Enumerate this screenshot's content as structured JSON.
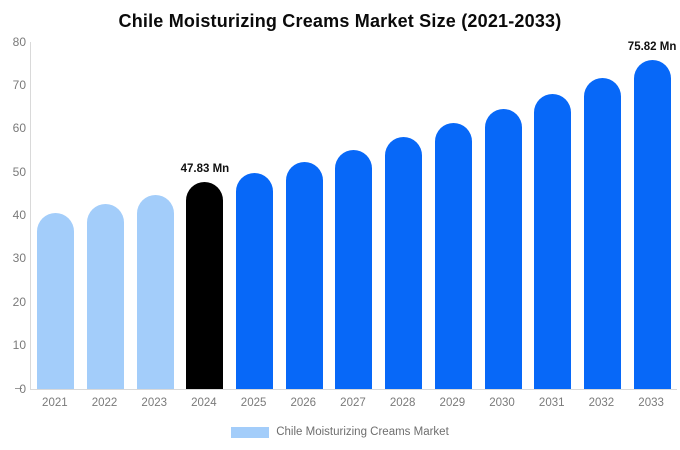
{
  "title": "Chile Moisturizing Creams Market Size (2021-2033)",
  "legend": {
    "label": "Chile Moisturizing Creams Market"
  },
  "colors": {
    "historical_bar": "#a3cdfa",
    "base_year_bar": "#000000",
    "forecast_bar": "#0768f8",
    "axis_line": "#d9d9d9",
    "tick_label_text": "#7a7a7a",
    "data_label_text": "#111111",
    "title_text": "#0a0a0a"
  },
  "chart_data": {
    "type": "bar",
    "title": "Chile Moisturizing Creams Market Size (2021-2033)",
    "series_name": "Chile Moisturizing Creams Market",
    "categories": [
      "2021",
      "2022",
      "2023",
      "2024",
      "2025",
      "2026",
      "2027",
      "2028",
      "2029",
      "2030",
      "2031",
      "2032",
      "2033"
    ],
    "values": [
      40.5,
      42.7,
      44.8,
      47.83,
      49.9,
      52.4,
      55.1,
      58.2,
      61.3,
      64.6,
      68.0,
      71.7,
      75.82
    ],
    "bar_roles": [
      "historical",
      "historical",
      "historical",
      "base_year",
      "forecast",
      "forecast",
      "forecast",
      "forecast",
      "forecast",
      "forecast",
      "forecast",
      "forecast",
      "forecast"
    ],
    "data_labels": [
      "",
      "",
      "",
      "47.83 Mn",
      "",
      "",
      "",
      "",
      "",
      "",
      "",
      "",
      "75.82 Mn"
    ],
    "unit": "Mn",
    "xlabel": "",
    "ylabel": "",
    "ylim": [
      0,
      80
    ],
    "yticks": [
      0,
      10,
      20,
      30,
      40,
      50,
      60,
      70,
      80
    ],
    "grid": false,
    "legend_position": "bottom"
  }
}
